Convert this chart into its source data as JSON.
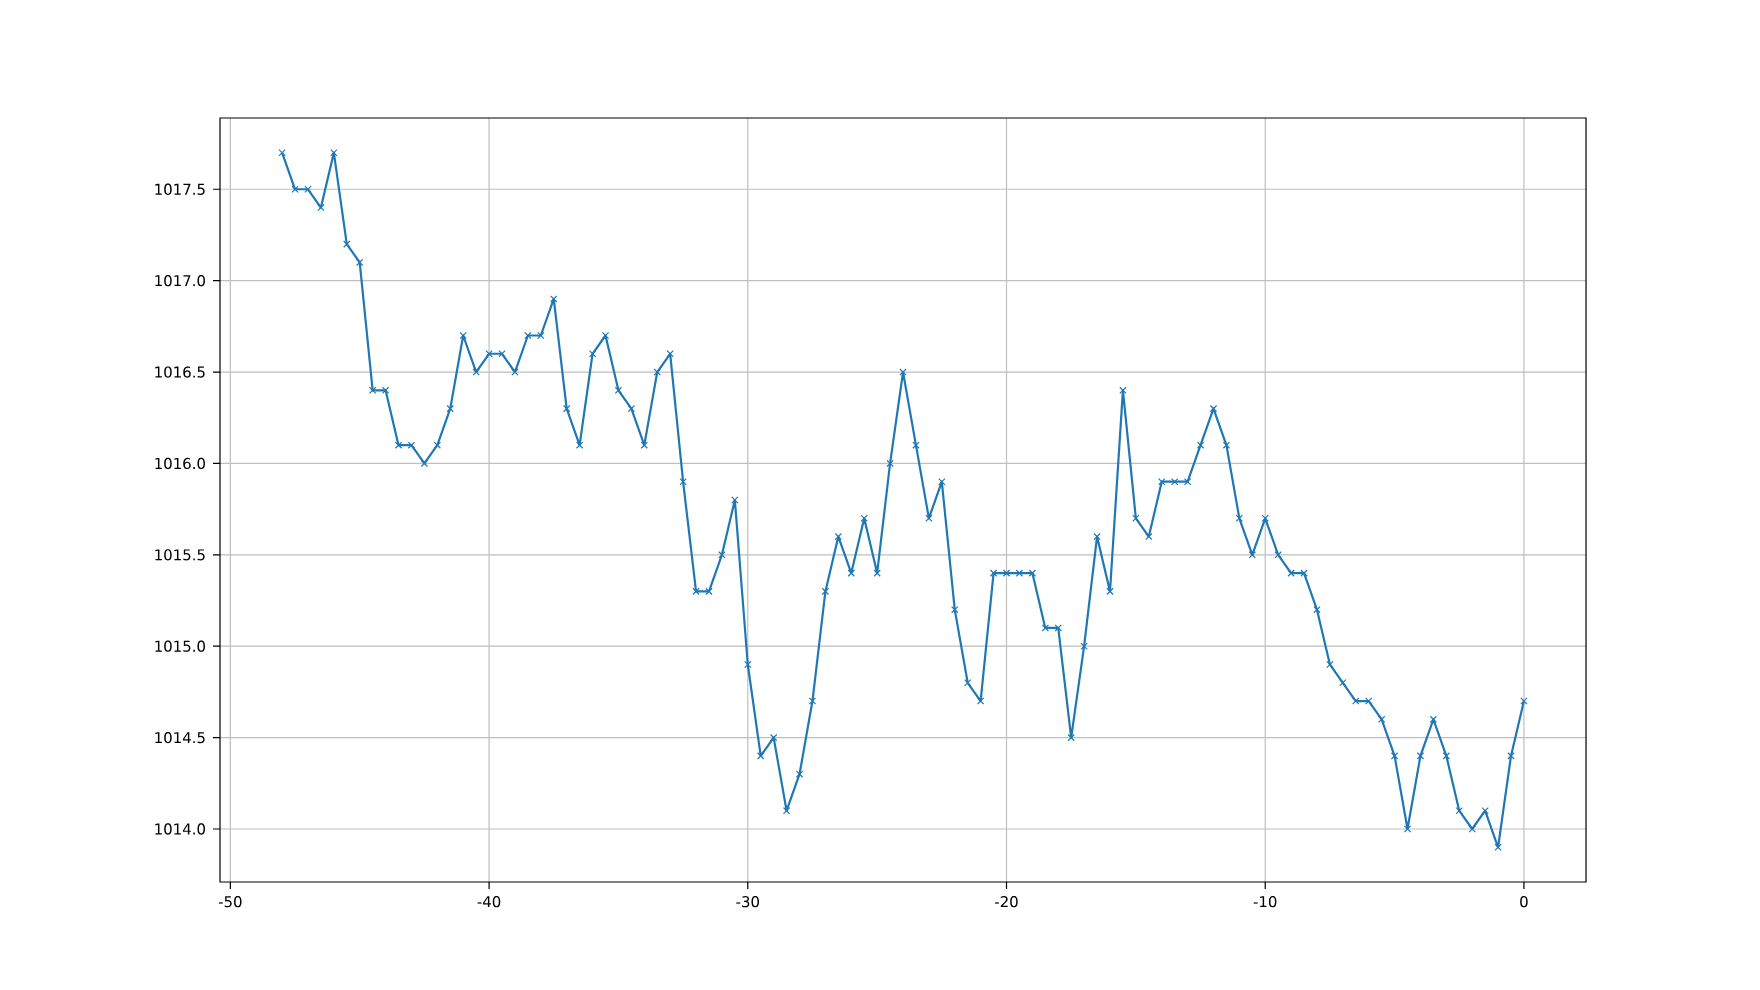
{
  "chart_data": {
    "type": "line",
    "x": [
      -48,
      -47.5,
      -47,
      -46.5,
      -46,
      -45.5,
      -45,
      -44.5,
      -44,
      -43.5,
      -43,
      -42.5,
      -42,
      -41.5,
      -41,
      -40.5,
      -40,
      -39.5,
      -39,
      -38.5,
      -38,
      -37.5,
      -37,
      -36.5,
      -36,
      -35.5,
      -35,
      -34.5,
      -34,
      -33.5,
      -33,
      -32.5,
      -32,
      -31.5,
      -31,
      -30.5,
      -30,
      -29.5,
      -29,
      -28.5,
      -28,
      -27.5,
      -27,
      -26.5,
      -26,
      -25.5,
      -25,
      -24.5,
      -24,
      -23.5,
      -23,
      -22.5,
      -22,
      -21.5,
      -21,
      -20.5,
      -20,
      -19.5,
      -19,
      -18.5,
      -18,
      -17.5,
      -17,
      -16.5,
      -16,
      -15.5,
      -15,
      -14.5,
      -14,
      -13.5,
      -13,
      -12.5,
      -12,
      -11.5,
      -11,
      -10.5,
      -10,
      -9.5,
      -9,
      -8.5,
      -8,
      -7.5,
      -7,
      -6.5,
      -6,
      -5.5,
      -5,
      -4.5,
      -4,
      -3.5,
      -3,
      -2.5,
      -2,
      -1.5,
      -1,
      -0.5,
      0
    ],
    "series": [
      {
        "color": "#1f77b4",
        "values": [
          1017.7,
          1017.5,
          1017.5,
          1017.4,
          1017.7,
          1017.2,
          1017.1,
          1016.4,
          1016.4,
          1016.1,
          1016.1,
          1016.0,
          1016.1,
          1016.3,
          1016.7,
          1016.5,
          1016.6,
          1016.6,
          1016.5,
          1016.7,
          1016.7,
          1016.9,
          1016.3,
          1016.1,
          1016.6,
          1016.7,
          1016.4,
          1016.3,
          1016.1,
          1016.5,
          1016.6,
          1015.9,
          1015.3,
          1015.3,
          1015.5,
          1015.8,
          1014.9,
          1014.4,
          1014.5,
          1014.1,
          1014.3,
          1014.7,
          1015.3,
          1015.6,
          1015.4,
          1015.7,
          1015.4,
          1016.0,
          1016.5,
          1016.1,
          1015.7,
          1015.9,
          1015.2,
          1014.8,
          1014.7,
          1015.4,
          1015.4,
          1015.4,
          1015.4,
          1015.1,
          1015.1,
          1014.5,
          1015.0,
          1015.6,
          1015.3,
          1016.4,
          1015.7,
          1015.6,
          1015.9,
          1015.9,
          1015.9,
          1016.1,
          1016.3,
          1016.1,
          1015.7,
          1015.5,
          1015.7,
          1015.5,
          1015.4,
          1015.4,
          1015.2,
          1014.9,
          1014.8,
          1014.7,
          1014.7,
          1014.6,
          1014.4,
          1014.0,
          1014.4,
          1014.6,
          1014.4,
          1014.1,
          1014.0,
          1014.1,
          1013.9,
          1014.4,
          1014.7
        ]
      }
    ],
    "xlim": [
      -50.4,
      2.4
    ],
    "ylim": [
      1013.71,
      1017.89
    ],
    "xticks": [
      -50,
      -40,
      -30,
      -20,
      -10,
      0
    ],
    "yticks": [
      {
        "value": 1014,
        "label": "1014.0"
      },
      {
        "value": 1014.5,
        "label": "1014.5"
      },
      {
        "value": 1015,
        "label": "1015.0"
      },
      {
        "value": 1015.5,
        "label": "1015.5"
      },
      {
        "value": 1016,
        "label": "1016.0"
      },
      {
        "value": 1016.5,
        "label": "1016.5"
      },
      {
        "value": 1017,
        "label": "1017.0"
      },
      {
        "value": 1017.5,
        "label": "1017.5"
      }
    ],
    "grid": true,
    "marker": "cross",
    "line_style": "solid"
  }
}
